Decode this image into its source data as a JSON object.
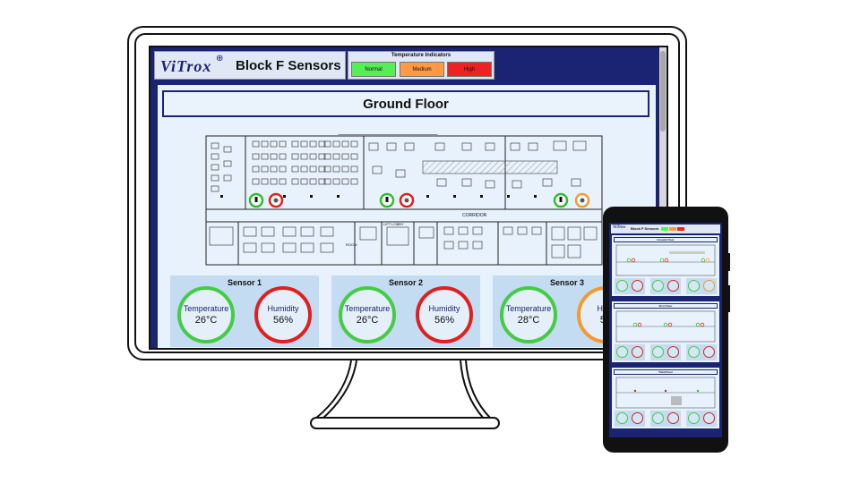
{
  "header": {
    "logo_text": "ViTrox",
    "logo_mark": "⊕",
    "title": "Block F Sensors"
  },
  "indicators": {
    "title": "Temperature Indicators",
    "normal": "Normal",
    "medium": "Medium",
    "high": "High",
    "colors": {
      "normal": "#55ee55",
      "medium": "#ff9944",
      "high": "#ee2222"
    }
  },
  "floor": {
    "title": "Ground Floor",
    "plan_labels": {
      "corridor": "CORRIDOR",
      "lift_lobby": "LIFT LOBBY",
      "room": "ROOM"
    }
  },
  "sensors": [
    {
      "title": "Sensor 1",
      "temp_label": "Temperature",
      "temp_value": "26°C",
      "hum_label": "Humidity",
      "hum_value": "56%"
    },
    {
      "title": "Sensor 2",
      "temp_label": "Temperature",
      "temp_value": "26°C",
      "hum_label": "Humidity",
      "hum_value": "56%"
    },
    {
      "title": "Sensor 3",
      "temp_label": "Temperature",
      "temp_value": "28°C",
      "hum_label": "Hum",
      "hum_value": "51"
    }
  ],
  "phone": {
    "logo_text": "ViTrox",
    "title": "Block F Sensors",
    "sections": [
      "Ground Floor",
      "First Floor",
      "Third Floor"
    ]
  }
}
